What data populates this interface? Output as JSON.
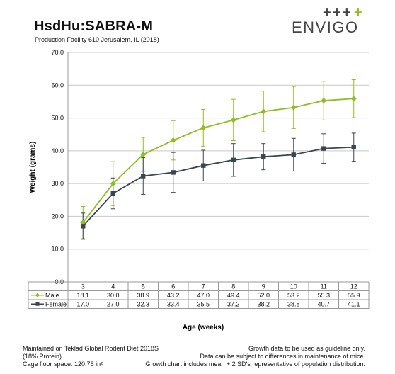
{
  "header": {
    "title": "HsdHu:SABRA-M",
    "subtitle": "Production Facility 610 Jerusalem, IL (2018)"
  },
  "logo": {
    "text": "ENVIGO",
    "plus_dark": "+",
    "plus_green": "+"
  },
  "colors": {
    "male": "#8cbf1f",
    "female": "#3a4550",
    "grid": "#c8c8c8",
    "logo_green": "#8cbf1f",
    "logo_dark": "#444444"
  },
  "chart_data": {
    "type": "line",
    "ylabel": "Weight (grams)",
    "xlabel": "Age (weeks)",
    "ylim": [
      0,
      70
    ],
    "yticks": [
      "0.0",
      "10.0",
      "20.0",
      "30.0",
      "40.0",
      "50.0",
      "60.0",
      "70.0"
    ],
    "ytick_values": [
      0,
      10,
      20,
      30,
      40,
      50,
      60,
      70
    ],
    "categories": [
      "3",
      "4",
      "5",
      "6",
      "7",
      "8",
      "9",
      "10",
      "11",
      "12"
    ],
    "grid": true,
    "legend": "table-below",
    "series": [
      {
        "name": "Male",
        "marker": "diamond",
        "values": [
          18.1,
          30.0,
          38.9,
          43.2,
          47.0,
          49.4,
          52.0,
          53.2,
          55.3,
          55.9
        ],
        "value_labels": [
          "18.1",
          "30.0",
          "38.9",
          "43.2",
          "47.0",
          "49.4",
          "52.0",
          "53.2",
          "55.3",
          "55.9"
        ],
        "err_upper": [
          23.0,
          36.7,
          44.1,
          49.2,
          52.6,
          55.7,
          58.2,
          59.6,
          61.2,
          61.7
        ],
        "err_lower": [
          13.2,
          23.3,
          33.7,
          37.2,
          41.4,
          43.1,
          45.8,
          46.8,
          49.4,
          50.1
        ]
      },
      {
        "name": "Female",
        "marker": "square",
        "values": [
          17.0,
          27.0,
          32.3,
          33.4,
          35.5,
          37.2,
          38.2,
          38.8,
          40.7,
          41.1
        ],
        "value_labels": [
          "17.0",
          "27.0",
          "32.3",
          "33.4",
          "35.5",
          "37.2",
          "38.2",
          "38.8",
          "40.7",
          "41.1"
        ],
        "err_upper": [
          21.0,
          31.7,
          37.9,
          39.5,
          40.2,
          42.2,
          42.2,
          43.8,
          45.2,
          45.4
        ],
        "err_lower": [
          13.0,
          22.3,
          26.7,
          27.3,
          30.8,
          32.2,
          34.2,
          33.8,
          36.2,
          36.8
        ]
      }
    ]
  },
  "footer": {
    "left_1": "Maintained on Teklad Global Rodent Diet 2018S",
    "left_2": "(18% Protein)",
    "left_3": "Cage floor space: 120.75 in²",
    "right_1": "Growth data to be used as guideline only.",
    "right_2": "Data can be subject to differences in maintenance of mice.",
    "right_3": "Growth chart includes mean + 2 SD's representative of population distribution."
  }
}
